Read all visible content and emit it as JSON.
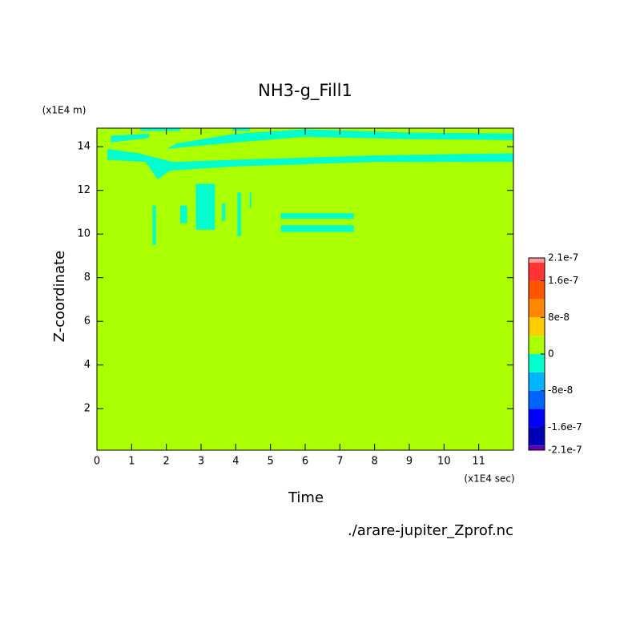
{
  "chart_data": {
    "type": "filled-contour",
    "title": "NH3-g_Fill1",
    "x_label": "Time",
    "x_unit": "(x1E4 sec)",
    "y_label": "Z-coordinate",
    "y_unit": "(x1E4 m)",
    "source": "./arare-jupiter_Zprof.nc",
    "xlim": [
      0,
      12
    ],
    "xticks": [
      0,
      1,
      2,
      3,
      4,
      5,
      6,
      7,
      8,
      9,
      10,
      11
    ],
    "ylim": [
      0.1,
      14.85
    ],
    "yticks": [
      2,
      4,
      6,
      8,
      10,
      12,
      14
    ],
    "background_color": "#aaff00",
    "regions": [
      {
        "color": "#00ffcc",
        "t": [
          0.3,
          1.4,
          1.75,
          2.1,
          4,
          8,
          12,
          12,
          8,
          4,
          2.2,
          1.2,
          0.3
        ],
        "z": [
          13.4,
          13.3,
          12.5,
          12.9,
          13.1,
          13.3,
          13.3,
          13.7,
          13.6,
          13.4,
          13.3,
          13.7,
          13.9
        ]
      },
      {
        "color": "#00ffcc",
        "t": [
          2.0,
          4,
          6,
          9,
          12,
          12,
          9,
          6,
          4,
          2.3
        ],
        "z": [
          13.9,
          14.2,
          14.45,
          14.35,
          14.3,
          14.6,
          14.65,
          14.8,
          14.6,
          14.15
        ]
      },
      {
        "color": "#00ffcc",
        "t": [
          0.4,
          1.5,
          1.5,
          0.4
        ],
        "z": [
          14.2,
          14.4,
          14.6,
          14.5
        ]
      },
      {
        "color": "#00ffcc",
        "t": [
          1.25,
          2.4,
          2.4,
          1.25
        ],
        "z": [
          14.72,
          14.72,
          14.85,
          14.85
        ]
      },
      {
        "color": "#00ffcc",
        "t": [
          3.9,
          4.4,
          4.4,
          3.9
        ],
        "z": [
          14.72,
          14.72,
          14.85,
          14.85
        ]
      },
      {
        "color": "#00ffcc",
        "t": [
          1.6,
          1.7,
          1.7,
          1.6
        ],
        "z": [
          9.5,
          9.5,
          11.3,
          11.3
        ]
      },
      {
        "color": "#00ffcc",
        "t": [
          2.4,
          2.6,
          2.6,
          2.4
        ],
        "z": [
          10.5,
          10.5,
          11.3,
          11.3
        ]
      },
      {
        "color": "#00ffcc",
        "t": [
          2.85,
          3.4,
          3.4,
          2.85
        ],
        "z": [
          10.2,
          10.2,
          12.3,
          12.3
        ]
      },
      {
        "color": "#00ffcc",
        "t": [
          3.6,
          3.7,
          3.7,
          3.6
        ],
        "z": [
          10.6,
          10.6,
          11.4,
          11.4
        ]
      },
      {
        "color": "#00ffcc",
        "t": [
          4.05,
          4.15,
          4.15,
          4.05
        ],
        "z": [
          9.9,
          9.9,
          11.9,
          11.9
        ]
      },
      {
        "color": "#00ffcc",
        "t": [
          4.4,
          4.45,
          4.45,
          4.4
        ],
        "z": [
          11.2,
          11.2,
          11.9,
          11.9
        ]
      },
      {
        "color": "#00ffcc",
        "t": [
          5.3,
          7.4,
          7.4,
          5.3
        ],
        "z": [
          10.1,
          10.1,
          10.4,
          10.4
        ]
      },
      {
        "color": "#00ffcc",
        "t": [
          5.3,
          7.4,
          7.4,
          5.3
        ],
        "z": [
          10.7,
          10.7,
          10.95,
          10.95
        ]
      }
    ],
    "colorbar": {
      "levels": [
        -2.1e-07,
        -2e-07,
        -1.6e-07,
        -1.2e-07,
        -8e-08,
        -4e-08,
        0,
        4e-08,
        8e-08,
        1.2e-07,
        1.6e-07,
        2e-07,
        2.1e-07
      ],
      "colors": [
        "#6400b4",
        "#0000b4",
        "#0000ff",
        "#0064ff",
        "#00b4ff",
        "#00ffcc",
        "#aaff00",
        "#ffcc00",
        "#ff8800",
        "#ff5500",
        "#ff3333",
        "#ff9999"
      ],
      "ticks": [
        -2.1e-07,
        -1.6e-07,
        -8e-08,
        0,
        8e-08,
        1.6e-07,
        2.1e-07
      ]
    }
  }
}
